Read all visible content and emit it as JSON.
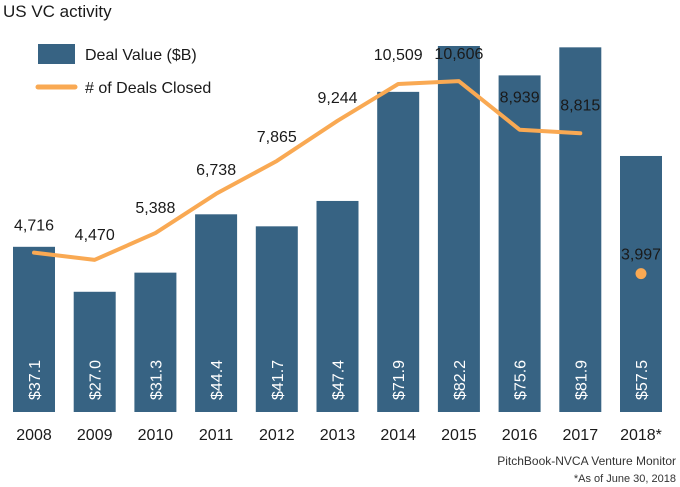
{
  "chart_data": {
    "type": "bar",
    "title": "US VC activity",
    "categories": [
      "2008",
      "2009",
      "2010",
      "2011",
      "2012",
      "2013",
      "2014",
      "2015",
      "2016",
      "2017",
      "2018*"
    ],
    "series": [
      {
        "name": "Deal Value ($B)",
        "type": "bar",
        "values": [
          37.1,
          27.0,
          31.3,
          44.4,
          41.7,
          47.4,
          71.9,
          82.2,
          75.6,
          81.9,
          57.5
        ],
        "labels": [
          "$37.1",
          "$27.0",
          "$31.3",
          "$44.4",
          "$41.7",
          "$47.4",
          "$71.9",
          "$82.2",
          "$75.6",
          "$81.9",
          "$57.5"
        ],
        "color": "#376383"
      },
      {
        "name": "# of Deals Closed",
        "type": "line",
        "values": [
          4716,
          4470,
          5388,
          6738,
          7865,
          9244,
          10509,
          10606,
          8939,
          8815,
          3997
        ],
        "labels": [
          "4,716",
          "4,470",
          "5,388",
          "6,738",
          "7,865",
          "9,244",
          "10,509",
          "10,606",
          "8,939",
          "8,815",
          "3,997"
        ],
        "color": "#F9A953",
        "last_point_separate": true
      }
    ],
    "ylim_bars": [
      0,
      82.2
    ],
    "ylim_deals": [
      0,
      12000
    ],
    "grid": false,
    "legend_position": "top-left",
    "source": "PitchBook-NVCA Venture Monitor",
    "note": "*As of June 30, 2018"
  }
}
